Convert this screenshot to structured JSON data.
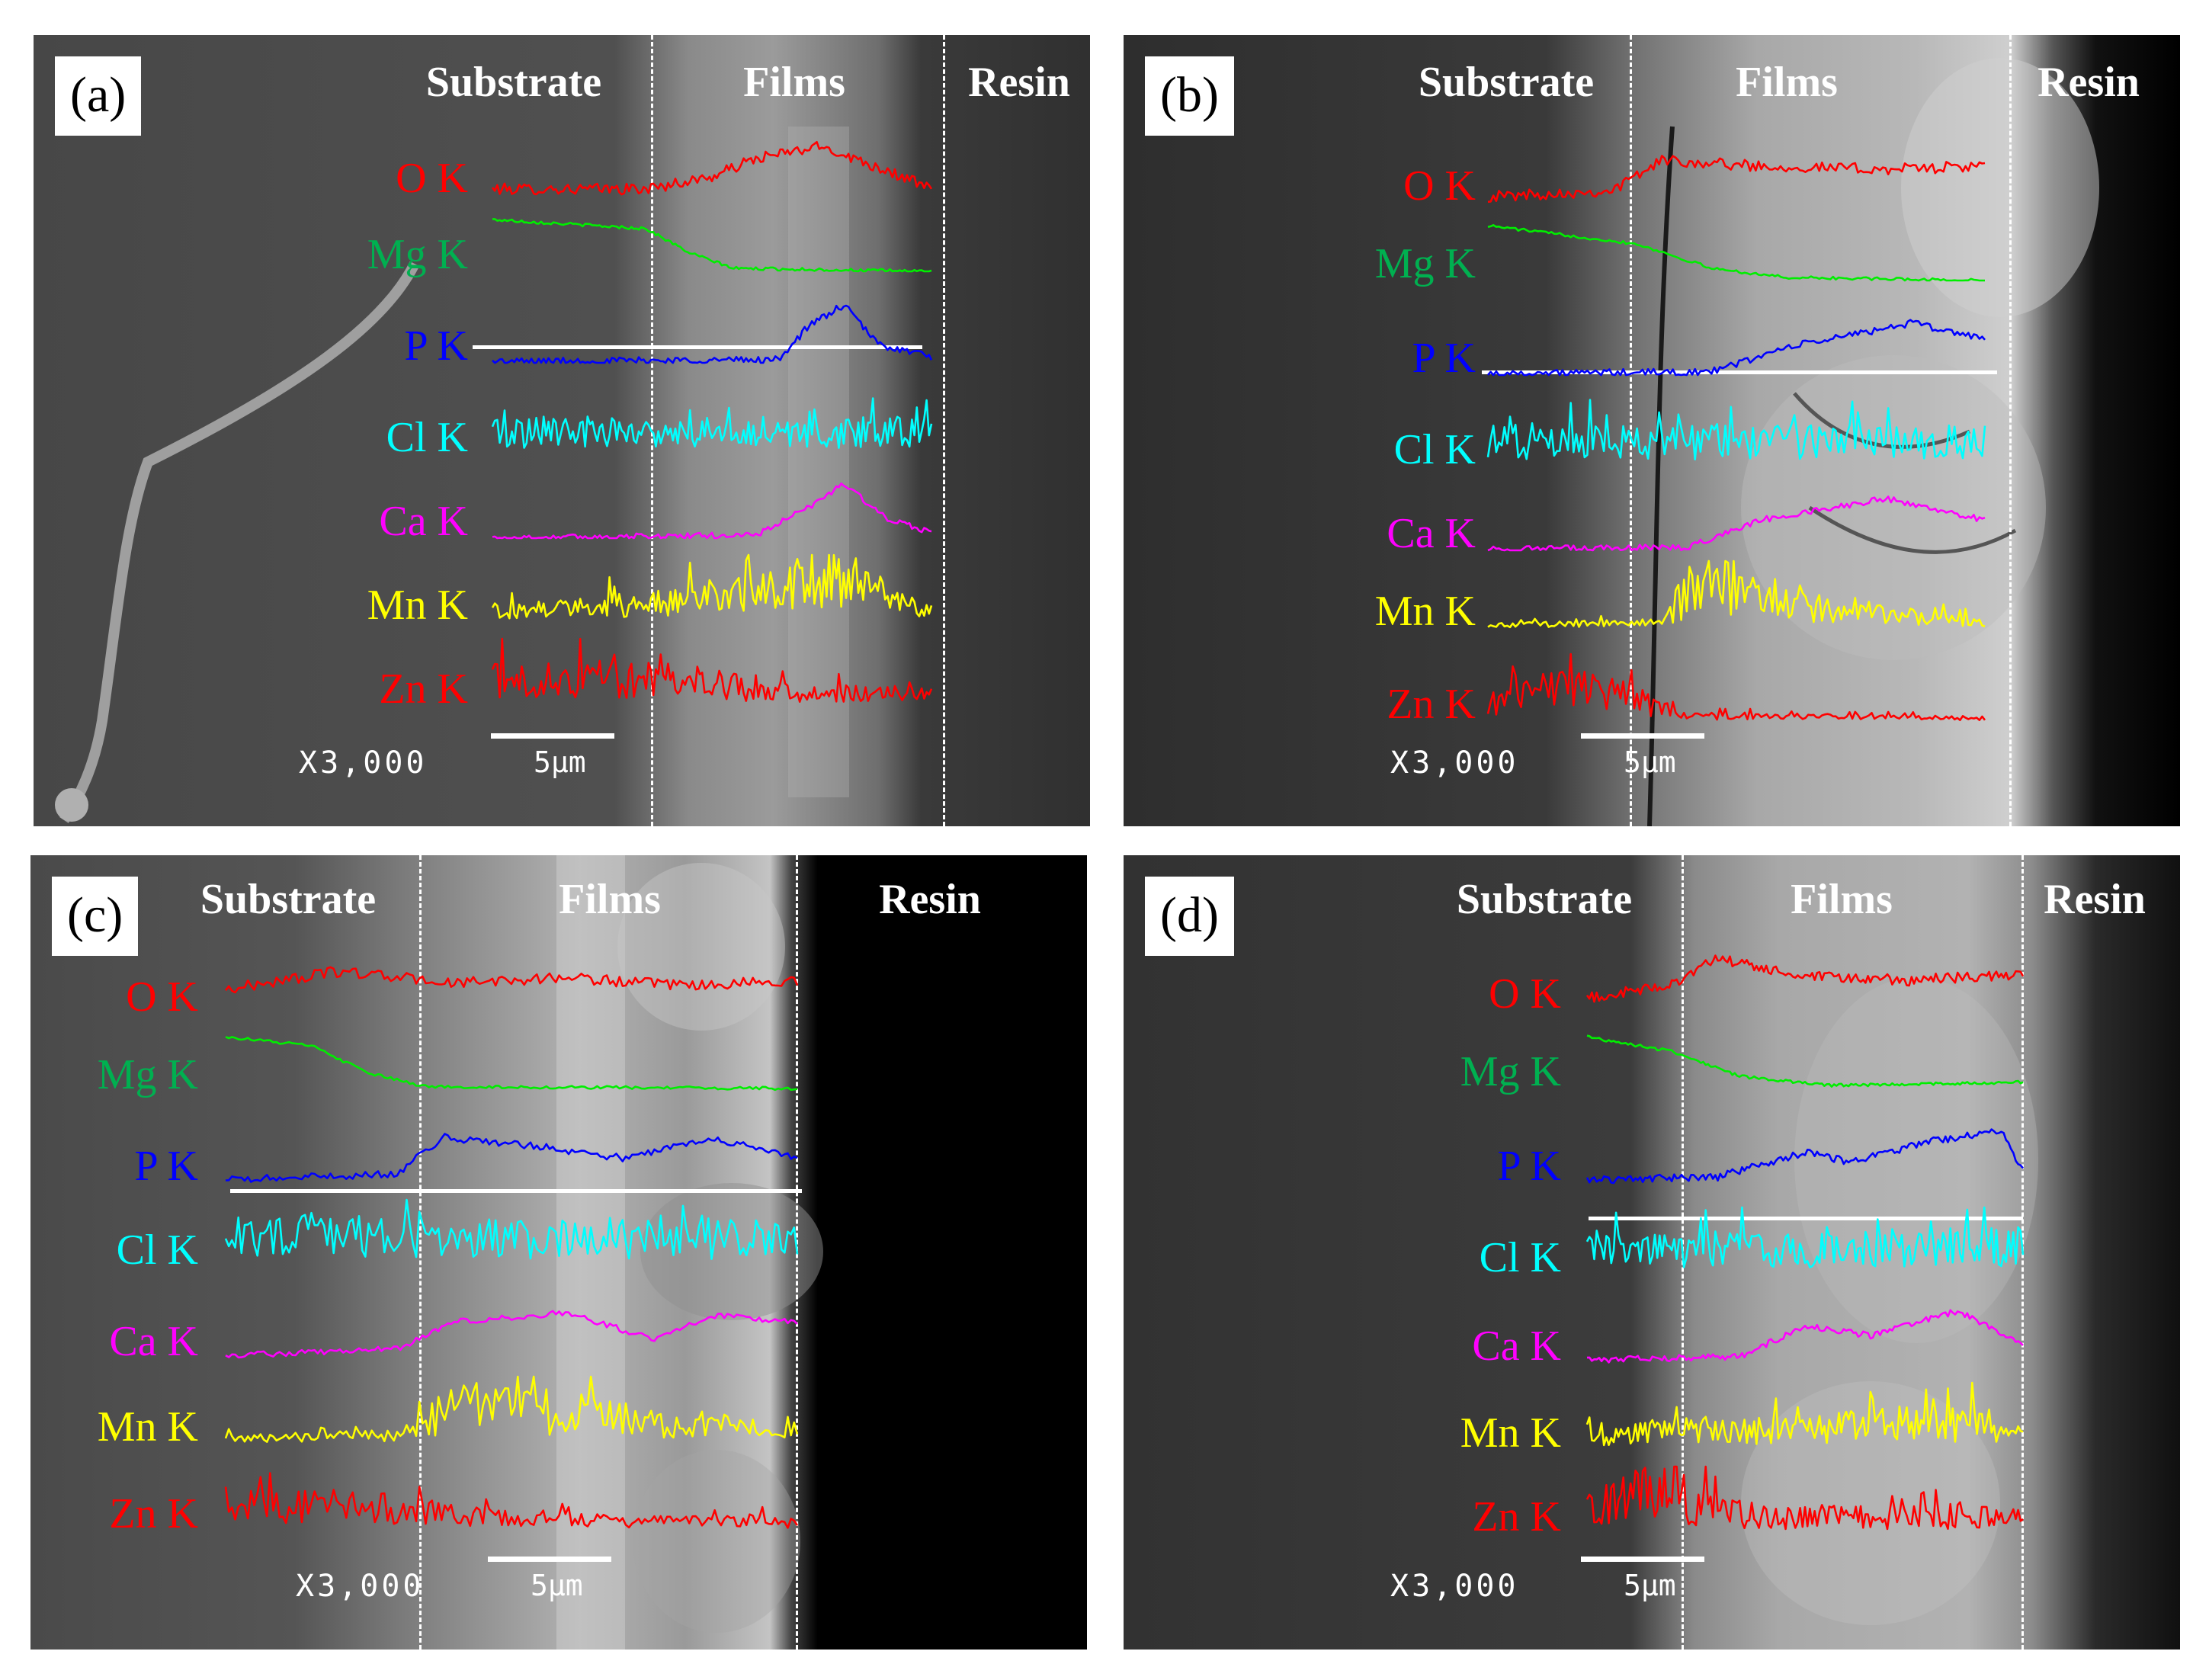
{
  "colors": {
    "O": "#ff0000",
    "Mg": "#00ee00",
    "P": "#0000ff",
    "Cl": "#00ffff",
    "Ca": "#ff00ff",
    "Mn": "#ffff00",
    "Zn": "#ff0000"
  },
  "label_colors": {
    "O": "#ff0000",
    "Mg": "#00b050",
    "P": "#0000ff",
    "Cl": "#00ffff",
    "Ca": "#ff00ff",
    "Mn": "#ffff00",
    "Zn": "#ff0000"
  },
  "element_keys": [
    "O",
    "Mg",
    "P",
    "Cl",
    "Ca",
    "Mn",
    "Zn"
  ],
  "element_labels": [
    "O K",
    "Mg K",
    "P K",
    "Cl K",
    "Ca K",
    "Mn K",
    "Zn K"
  ],
  "panels": [
    {
      "id": "a",
      "label": "(a)",
      "regions": {
        "substrate": "Substrate",
        "films": "Films",
        "resin": "Resin"
      },
      "magnification": "X3,000",
      "scale_bar": "5μm"
    },
    {
      "id": "b",
      "label": "(b)",
      "regions": {
        "substrate": "Substrate",
        "films": "Films",
        "resin": "Resin"
      },
      "magnification": "X3,000",
      "scale_bar": "5μm"
    },
    {
      "id": "c",
      "label": "(c)",
      "regions": {
        "substrate": "Substrate",
        "films": "Films",
        "resin": "Resin"
      },
      "magnification": "X3,000",
      "scale_bar": "5μm"
    },
    {
      "id": "d",
      "label": "(d)",
      "regions": {
        "substrate": "Substrate",
        "films": "Films",
        "resin": "Resin"
      },
      "magnification": "X3,000",
      "scale_bar": "5μm"
    }
  ],
  "profiles": {
    "a": {
      "O": [
        [
          0,
          0.1
        ],
        [
          0.35,
          0.1
        ],
        [
          0.5,
          0.3
        ],
        [
          0.6,
          0.6
        ],
        [
          0.75,
          0.8
        ],
        [
          0.9,
          0.4
        ],
        [
          1,
          0.1
        ]
      ],
      "Mg": [
        [
          0,
          0.85
        ],
        [
          0.35,
          0.7
        ],
        [
          0.45,
          0.3
        ],
        [
          0.55,
          0.05
        ],
        [
          1,
          0.0
        ]
      ],
      "P": [
        [
          0,
          0.02
        ],
        [
          0.65,
          0.05
        ],
        [
          0.72,
          0.6
        ],
        [
          0.8,
          0.95
        ],
        [
          0.88,
          0.3
        ],
        [
          1,
          0.1
        ]
      ],
      "Cl": [
        [
          0,
          0.4
        ],
        [
          1,
          0.4
        ]
      ],
      "Ca": [
        [
          0,
          0.0
        ],
        [
          0.6,
          0.05
        ],
        [
          0.72,
          0.5
        ],
        [
          0.8,
          0.9
        ],
        [
          0.9,
          0.3
        ],
        [
          1,
          0.1
        ]
      ],
      "Mn": [
        [
          0,
          0.2
        ],
        [
          0.4,
          0.35
        ],
        [
          0.6,
          0.55
        ],
        [
          0.75,
          0.8
        ],
        [
          0.9,
          0.4
        ],
        [
          1,
          0.2
        ]
      ],
      "Zn": [
        [
          0,
          0.5
        ],
        [
          0.5,
          0.45
        ],
        [
          0.6,
          0.25
        ],
        [
          1,
          0.2
        ]
      ]
    },
    "b": {
      "O": [
        [
          0,
          0.1
        ],
        [
          0.25,
          0.2
        ],
        [
          0.35,
          0.7
        ],
        [
          0.55,
          0.6
        ],
        [
          0.8,
          0.55
        ],
        [
          1,
          0.6
        ]
      ],
      "Mg": [
        [
          0,
          0.9
        ],
        [
          0.3,
          0.6
        ],
        [
          0.45,
          0.2
        ],
        [
          0.6,
          0.05
        ],
        [
          1,
          0.0
        ]
      ],
      "P": [
        [
          0,
          0.02
        ],
        [
          0.45,
          0.05
        ],
        [
          0.6,
          0.45
        ],
        [
          0.85,
          0.85
        ],
        [
          1,
          0.6
        ]
      ],
      "Cl": [
        [
          0,
          0.45
        ],
        [
          1,
          0.45
        ]
      ],
      "Ca": [
        [
          0,
          0.02
        ],
        [
          0.4,
          0.05
        ],
        [
          0.55,
          0.5
        ],
        [
          0.8,
          0.85
        ],
        [
          1,
          0.5
        ]
      ],
      "Mn": [
        [
          0,
          0.05
        ],
        [
          0.35,
          0.1
        ],
        [
          0.45,
          0.9
        ],
        [
          0.65,
          0.4
        ],
        [
          1,
          0.1
        ]
      ],
      "Zn": [
        [
          0,
          0.3
        ],
        [
          0.15,
          0.6
        ],
        [
          0.3,
          0.4
        ],
        [
          0.4,
          0.1
        ],
        [
          1,
          0.05
        ]
      ]
    },
    "c": {
      "O": [
        [
          0,
          0.4
        ],
        [
          0.2,
          0.7
        ],
        [
          0.4,
          0.5
        ],
        [
          0.6,
          0.6
        ],
        [
          0.8,
          0.45
        ],
        [
          1,
          0.55
        ]
      ],
      "Mg": [
        [
          0,
          0.9
        ],
        [
          0.15,
          0.75
        ],
        [
          0.25,
          0.3
        ],
        [
          0.35,
          0.08
        ],
        [
          1,
          0.05
        ]
      ],
      "P": [
        [
          0,
          0.05
        ],
        [
          0.3,
          0.15
        ],
        [
          0.38,
          0.75
        ],
        [
          0.55,
          0.6
        ],
        [
          0.7,
          0.4
        ],
        [
          0.85,
          0.75
        ],
        [
          1,
          0.4
        ]
      ],
      "Cl": [
        [
          0,
          0.55
        ],
        [
          1,
          0.5
        ]
      ],
      "Ca": [
        [
          0,
          0.05
        ],
        [
          0.3,
          0.15
        ],
        [
          0.4,
          0.6
        ],
        [
          0.6,
          0.75
        ],
        [
          0.75,
          0.3
        ],
        [
          0.85,
          0.7
        ],
        [
          1,
          0.6
        ]
      ],
      "Mn": [
        [
          0,
          0.1
        ],
        [
          0.3,
          0.15
        ],
        [
          0.4,
          0.7
        ],
        [
          0.6,
          0.55
        ],
        [
          0.8,
          0.35
        ],
        [
          1,
          0.3
        ]
      ],
      "Zn": [
        [
          0,
          0.5
        ],
        [
          0.3,
          0.4
        ],
        [
          0.5,
          0.2
        ],
        [
          1,
          0.15
        ]
      ]
    },
    "d": {
      "O": [
        [
          0,
          0.2
        ],
        [
          0.18,
          0.4
        ],
        [
          0.3,
          0.85
        ],
        [
          0.5,
          0.55
        ],
        [
          0.75,
          0.5
        ],
        [
          1,
          0.6
        ]
      ],
      "Mg": [
        [
          0,
          0.85
        ],
        [
          0.2,
          0.6
        ],
        [
          0.35,
          0.2
        ],
        [
          0.55,
          0.05
        ],
        [
          1,
          0.1
        ]
      ],
      "P": [
        [
          0,
          0.05
        ],
        [
          0.3,
          0.1
        ],
        [
          0.5,
          0.5
        ],
        [
          0.6,
          0.35
        ],
        [
          0.8,
          0.7
        ],
        [
          0.95,
          0.85
        ],
        [
          1,
          0.2
        ]
      ],
      "Cl": [
        [
          0,
          0.4
        ],
        [
          0.2,
          0.45
        ],
        [
          1,
          0.5
        ]
      ],
      "Ca": [
        [
          0,
          0.05
        ],
        [
          0.35,
          0.1
        ],
        [
          0.5,
          0.6
        ],
        [
          0.65,
          0.45
        ],
        [
          0.85,
          0.85
        ],
        [
          1,
          0.3
        ]
      ],
      "Mn": [
        [
          0,
          0.3
        ],
        [
          0.5,
          0.35
        ],
        [
          0.8,
          0.55
        ],
        [
          1,
          0.4
        ]
      ],
      "Zn": [
        [
          0,
          0.4
        ],
        [
          0.15,
          0.8
        ],
        [
          0.25,
          0.5
        ],
        [
          0.4,
          0.3
        ],
        [
          1,
          0.3
        ]
      ]
    }
  }
}
